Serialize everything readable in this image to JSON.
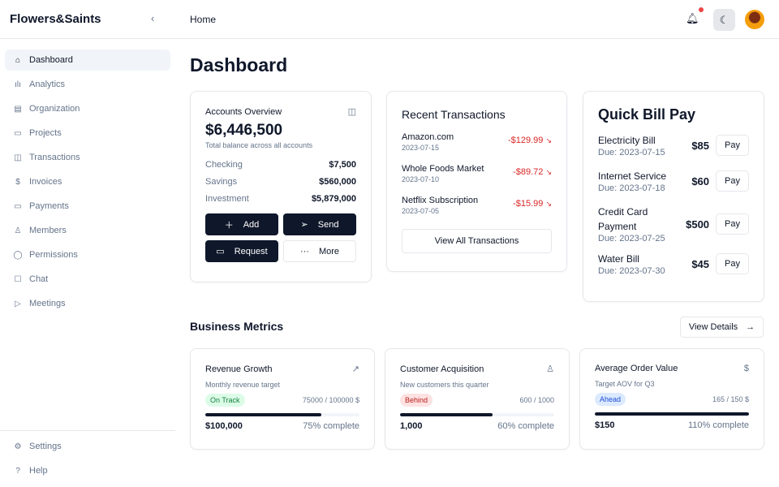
{
  "header": {
    "brand": "Flowers&Saints",
    "breadcrumb": "Home"
  },
  "sidebar": {
    "items": [
      {
        "label": "Dashboard",
        "icon": "home-icon",
        "glyph": "⌂"
      },
      {
        "label": "Analytics",
        "icon": "bar-chart-icon",
        "glyph": "ılı"
      },
      {
        "label": "Organization",
        "icon": "building-icon",
        "glyph": "▤"
      },
      {
        "label": "Projects",
        "icon": "folder-icon",
        "glyph": "▭"
      },
      {
        "label": "Transactions",
        "icon": "wallet-icon",
        "glyph": "◫"
      },
      {
        "label": "Invoices",
        "icon": "invoice-icon",
        "glyph": "$"
      },
      {
        "label": "Payments",
        "icon": "credit-card-icon",
        "glyph": "▭"
      },
      {
        "label": "Members",
        "icon": "users-icon",
        "glyph": "♙"
      },
      {
        "label": "Permissions",
        "icon": "shield-icon",
        "glyph": "◯"
      },
      {
        "label": "Chat",
        "icon": "chat-icon",
        "glyph": "☐"
      },
      {
        "label": "Meetings",
        "icon": "video-icon",
        "glyph": "▷"
      }
    ],
    "footer": [
      {
        "label": "Settings",
        "icon": "gear-icon",
        "glyph": "⚙"
      },
      {
        "label": "Help",
        "icon": "help-icon",
        "glyph": "?"
      }
    ]
  },
  "page": {
    "title": "Dashboard"
  },
  "accounts": {
    "title": "Accounts Overview",
    "total": "$6,446,500",
    "subtitle": "Total balance across all accounts",
    "rows": [
      {
        "label": "Checking",
        "value": "$7,500"
      },
      {
        "label": "Savings",
        "value": "$560,000"
      },
      {
        "label": "Investment",
        "value": "$5,879,000"
      }
    ],
    "buttons": {
      "add": "Add",
      "send": "Send",
      "request": "Request",
      "more": "More"
    }
  },
  "transactions": {
    "title": "Recent Transactions",
    "items": [
      {
        "name": "Amazon.com",
        "date": "2023-07-15",
        "amount": "-$129.99"
      },
      {
        "name": "Whole Foods Market",
        "date": "2023-07-10",
        "amount": "-$89.72"
      },
      {
        "name": "Netflix Subscription",
        "date": "2023-07-05",
        "amount": "-$15.99"
      }
    ],
    "view_all": "View All Transactions"
  },
  "billpay": {
    "title": "Quick Bill Pay",
    "pay_label": "Pay",
    "bills": [
      {
        "name": "Electricity Bill",
        "due": "Due: 2023-07-15",
        "amount": "$85"
      },
      {
        "name": "Internet Service",
        "due": "Due: 2023-07-18",
        "amount": "$60"
      },
      {
        "name": "Credit Card Payment",
        "due": "Due: 2023-07-25",
        "amount": "$500"
      },
      {
        "name": "Water Bill",
        "due": "Due: 2023-07-30",
        "amount": "$45"
      }
    ]
  },
  "metrics": {
    "title": "Business Metrics",
    "view_details": "View Details",
    "cards": [
      {
        "title": "Revenue Growth",
        "icon": "trending-up-icon",
        "glyph": "↗",
        "subtitle": "Monthly revenue target",
        "status": "On Track",
        "status_bg": "#dcfce7",
        "status_color": "#15803d",
        "ratio": "75000 / 100000 $",
        "progress": 75,
        "value": "$100,000",
        "complete": "75% complete"
      },
      {
        "title": "Customer Acquisition",
        "icon": "users-icon",
        "glyph": "♙",
        "subtitle": "New customers this quarter",
        "status": "Behind",
        "status_bg": "#fee2e2",
        "status_color": "#b91c1c",
        "ratio": "600 / 1000",
        "progress": 60,
        "value": "1,000",
        "complete": "60% complete"
      },
      {
        "title": "Average Order Value",
        "icon": "dollar-icon",
        "glyph": "$",
        "subtitle": "Target AOV for Q3",
        "status": "Ahead",
        "status_bg": "#dbeafe",
        "status_color": "#1d4ed8",
        "ratio": "165 / 150 $",
        "progress": 100,
        "value": "$150",
        "complete": "110% complete"
      }
    ]
  }
}
